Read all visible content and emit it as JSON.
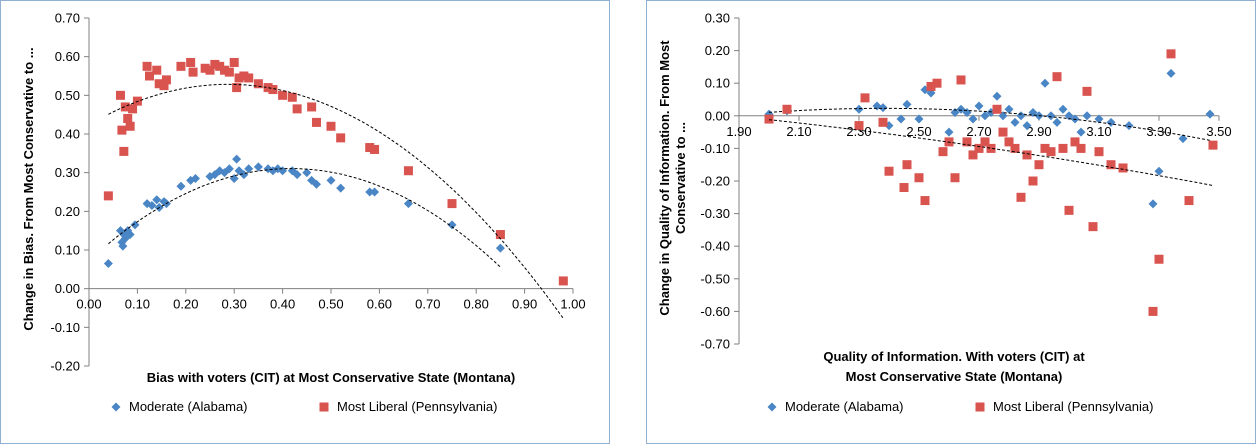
{
  "colors": {
    "moderate": "#4a86c5",
    "liberal": "#d9534f",
    "axis": "#808080"
  },
  "chart_data": [
    {
      "type": "scatter",
      "xlabel": "Bias with voters (CIT) at Most Conservative State (Montana)",
      "ylabel": "Change in Bias. From Most Conservative to ...",
      "xlim": [
        0,
        1
      ],
      "ylim": [
        -0.2,
        0.7
      ],
      "x_ticks": [
        "0.00",
        "0.10",
        "0.20",
        "0.30",
        "0.40",
        "0.50",
        "0.60",
        "0.70",
        "0.80",
        "0.90",
        "1.00"
      ],
      "y_ticks": [
        "-0.20",
        "-0.10",
        "0.00",
        "0.10",
        "0.20",
        "0.30",
        "0.40",
        "0.50",
        "0.60",
        "0.70"
      ],
      "grid": false,
      "legend": "bottom",
      "trendline": "polynomial (dotted)",
      "series": [
        {
          "name": "Moderate (Alabama)",
          "marker": "diamond",
          "points": [
            [
              0.04,
              0.065
            ],
            [
              0.065,
              0.15
            ],
            [
              0.068,
              0.12
            ],
            [
              0.07,
              0.11
            ],
            [
              0.072,
              0.14
            ],
            [
              0.075,
              0.13
            ],
            [
              0.08,
              0.15
            ],
            [
              0.085,
              0.14
            ],
            [
              0.095,
              0.165
            ],
            [
              0.12,
              0.22
            ],
            [
              0.13,
              0.215
            ],
            [
              0.14,
              0.23
            ],
            [
              0.145,
              0.21
            ],
            [
              0.155,
              0.225
            ],
            [
              0.16,
              0.22
            ],
            [
              0.19,
              0.265
            ],
            [
              0.21,
              0.28
            ],
            [
              0.22,
              0.285
            ],
            [
              0.25,
              0.29
            ],
            [
              0.26,
              0.295
            ],
            [
              0.27,
              0.305
            ],
            [
              0.28,
              0.3
            ],
            [
              0.29,
              0.31
            ],
            [
              0.3,
              0.285
            ],
            [
              0.305,
              0.335
            ],
            [
              0.31,
              0.305
            ],
            [
              0.32,
              0.295
            ],
            [
              0.33,
              0.31
            ],
            [
              0.35,
              0.315
            ],
            [
              0.37,
              0.31
            ],
            [
              0.38,
              0.305
            ],
            [
              0.39,
              0.31
            ],
            [
              0.4,
              0.305
            ],
            [
              0.42,
              0.305
            ],
            [
              0.43,
              0.295
            ],
            [
              0.45,
              0.3
            ],
            [
              0.46,
              0.28
            ],
            [
              0.47,
              0.27
            ],
            [
              0.5,
              0.28
            ],
            [
              0.52,
              0.26
            ],
            [
              0.58,
              0.25
            ],
            [
              0.59,
              0.25
            ],
            [
              0.66,
              0.22
            ],
            [
              0.75,
              0.165
            ],
            [
              0.85,
              0.105
            ]
          ]
        },
        {
          "name": "Most Liberal (Pennsylvania)",
          "marker": "square",
          "points": [
            [
              0.04,
              0.24
            ],
            [
              0.065,
              0.5
            ],
            [
              0.068,
              0.41
            ],
            [
              0.072,
              0.355
            ],
            [
              0.075,
              0.47
            ],
            [
              0.08,
              0.44
            ],
            [
              0.085,
              0.42
            ],
            [
              0.09,
              0.465
            ],
            [
              0.1,
              0.485
            ],
            [
              0.12,
              0.575
            ],
            [
              0.125,
              0.55
            ],
            [
              0.14,
              0.565
            ],
            [
              0.145,
              0.53
            ],
            [
              0.155,
              0.525
            ],
            [
              0.16,
              0.54
            ],
            [
              0.19,
              0.575
            ],
            [
              0.21,
              0.585
            ],
            [
              0.215,
              0.56
            ],
            [
              0.24,
              0.57
            ],
            [
              0.25,
              0.565
            ],
            [
              0.26,
              0.58
            ],
            [
              0.27,
              0.575
            ],
            [
              0.28,
              0.565
            ],
            [
              0.29,
              0.56
            ],
            [
              0.3,
              0.585
            ],
            [
              0.305,
              0.52
            ],
            [
              0.31,
              0.545
            ],
            [
              0.32,
              0.55
            ],
            [
              0.33,
              0.545
            ],
            [
              0.35,
              0.53
            ],
            [
              0.37,
              0.52
            ],
            [
              0.38,
              0.515
            ],
            [
              0.4,
              0.5
            ],
            [
              0.42,
              0.495
            ],
            [
              0.43,
              0.465
            ],
            [
              0.46,
              0.47
            ],
            [
              0.47,
              0.43
            ],
            [
              0.5,
              0.42
            ],
            [
              0.52,
              0.39
            ],
            [
              0.58,
              0.365
            ],
            [
              0.59,
              0.36
            ],
            [
              0.66,
              0.305
            ],
            [
              0.75,
              0.22
            ],
            [
              0.85,
              0.14
            ],
            [
              0.98,
              0.02
            ]
          ]
        }
      ]
    },
    {
      "type": "scatter",
      "xlabel": "Quality of Information. With voters (CIT) at Most Conservative State (Montana)",
      "xlabel_lines": [
        "Quality of Information. With voters (CIT) at",
        "Most Conservative State (Montana)"
      ],
      "ylabel": "Change in Quality of Information. From Most Conservative to ...",
      "ylabel_lines": [
        "Change in Quality of Information. From Most",
        "Conservative to ..."
      ],
      "xlim": [
        1.9,
        3.5
      ],
      "ylim": [
        -0.7,
        0.3
      ],
      "x_ticks": [
        "1.90",
        "2.10",
        "2.30",
        "2.50",
        "2.70",
        "2.90",
        "3.10",
        "3.30",
        "3.50"
      ],
      "y_ticks": [
        "-0.70",
        "-0.60",
        "-0.50",
        "-0.40",
        "-0.30",
        "-0.20",
        "-0.10",
        "0.00",
        "0.10",
        "0.20",
        "0.30"
      ],
      "grid": false,
      "legend": "bottom",
      "trendline": "polynomial (dotted)",
      "series": [
        {
          "name": "Moderate (Alabama)",
          "marker": "diamond",
          "points": [
            [
              2.0,
              0.005
            ],
            [
              2.06,
              0.015
            ],
            [
              2.3,
              0.02
            ],
            [
              2.36,
              0.03
            ],
            [
              2.38,
              0.025
            ],
            [
              2.4,
              -0.03
            ],
            [
              2.44,
              -0.01
            ],
            [
              2.46,
              0.035
            ],
            [
              2.5,
              -0.01
            ],
            [
              2.52,
              0.08
            ],
            [
              2.54,
              0.07
            ],
            [
              2.56,
              0.1
            ],
            [
              2.6,
              -0.05
            ],
            [
              2.62,
              0.01
            ],
            [
              2.64,
              0.02
            ],
            [
              2.66,
              0.01
            ],
            [
              2.68,
              -0.01
            ],
            [
              2.7,
              0.03
            ],
            [
              2.72,
              0.0
            ],
            [
              2.74,
              0.01
            ],
            [
              2.76,
              0.06
            ],
            [
              2.78,
              0.0
            ],
            [
              2.8,
              0.02
            ],
            [
              2.82,
              -0.02
            ],
            [
              2.84,
              0.0
            ],
            [
              2.86,
              -0.03
            ],
            [
              2.88,
              0.01
            ],
            [
              2.9,
              0.0
            ],
            [
              2.92,
              0.1
            ],
            [
              2.94,
              0.0
            ],
            [
              2.96,
              -0.02
            ],
            [
              2.98,
              0.02
            ],
            [
              3.0,
              0.0
            ],
            [
              3.02,
              -0.01
            ],
            [
              3.04,
              -0.05
            ],
            [
              3.06,
              0.0
            ],
            [
              3.1,
              -0.01
            ],
            [
              3.14,
              -0.02
            ],
            [
              3.2,
              -0.03
            ],
            [
              3.28,
              -0.27
            ],
            [
              3.3,
              -0.17
            ],
            [
              3.34,
              0.13
            ],
            [
              3.38,
              -0.07
            ],
            [
              3.47,
              0.005
            ]
          ]
        },
        {
          "name": "Most Liberal (Pennsylvania)",
          "marker": "square",
          "points": [
            [
              2.0,
              -0.01
            ],
            [
              2.06,
              0.02
            ],
            [
              2.3,
              -0.03
            ],
            [
              2.32,
              0.055
            ],
            [
              2.38,
              -0.02
            ],
            [
              2.4,
              -0.17
            ],
            [
              2.45,
              -0.22
            ],
            [
              2.46,
              -0.15
            ],
            [
              2.5,
              -0.19
            ],
            [
              2.52,
              -0.26
            ],
            [
              2.54,
              0.09
            ],
            [
              2.56,
              0.1
            ],
            [
              2.58,
              -0.11
            ],
            [
              2.6,
              -0.08
            ],
            [
              2.62,
              -0.19
            ],
            [
              2.64,
              0.11
            ],
            [
              2.66,
              -0.08
            ],
            [
              2.68,
              -0.12
            ],
            [
              2.7,
              -0.1
            ],
            [
              2.72,
              -0.08
            ],
            [
              2.74,
              -0.1
            ],
            [
              2.76,
              0.02
            ],
            [
              2.78,
              -0.05
            ],
            [
              2.8,
              -0.08
            ],
            [
              2.82,
              -0.1
            ],
            [
              2.84,
              -0.25
            ],
            [
              2.86,
              -0.12
            ],
            [
              2.88,
              -0.2
            ],
            [
              2.9,
              -0.15
            ],
            [
              2.92,
              -0.1
            ],
            [
              2.94,
              -0.11
            ],
            [
              2.96,
              0.12
            ],
            [
              2.98,
              -0.1
            ],
            [
              3.0,
              -0.29
            ],
            [
              3.02,
              -0.08
            ],
            [
              3.04,
              -0.1
            ],
            [
              3.06,
              0.075
            ],
            [
              3.08,
              -0.34
            ],
            [
              3.1,
              -0.11
            ],
            [
              3.14,
              -0.15
            ],
            [
              3.18,
              -0.16
            ],
            [
              3.28,
              -0.6
            ],
            [
              3.3,
              -0.44
            ],
            [
              3.34,
              0.19
            ],
            [
              3.4,
              -0.26
            ],
            [
              3.48,
              -0.09
            ]
          ]
        }
      ]
    }
  ]
}
